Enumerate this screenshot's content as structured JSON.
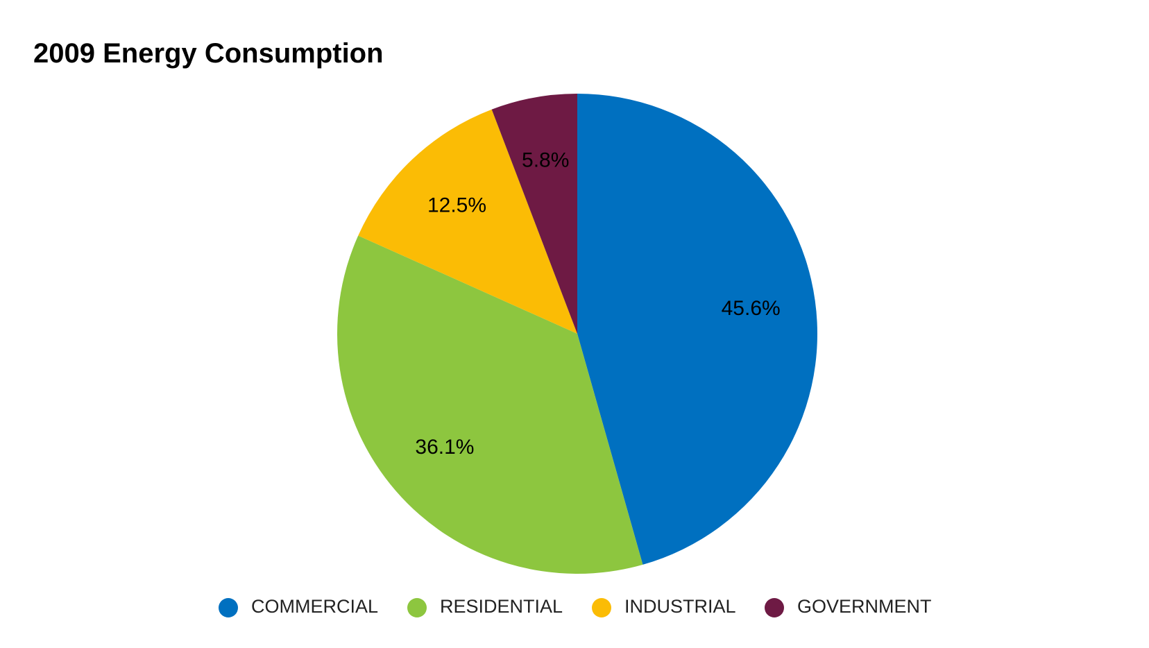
{
  "chart_data": {
    "type": "pie",
    "title": "2009 Energy Consumption",
    "categories": [
      "COMMERCIAL",
      "RESIDENTIAL",
      "INDUSTRIAL",
      "GOVERNMENT"
    ],
    "values": [
      45.6,
      36.1,
      12.5,
      5.8
    ],
    "value_labels": [
      "45.6%",
      "36.1%",
      "12.5%",
      "5.8%"
    ],
    "colors": [
      "#0070c0",
      "#8dc63f",
      "#fbbc05",
      "#6e1a44"
    ],
    "legend": "bottom"
  }
}
